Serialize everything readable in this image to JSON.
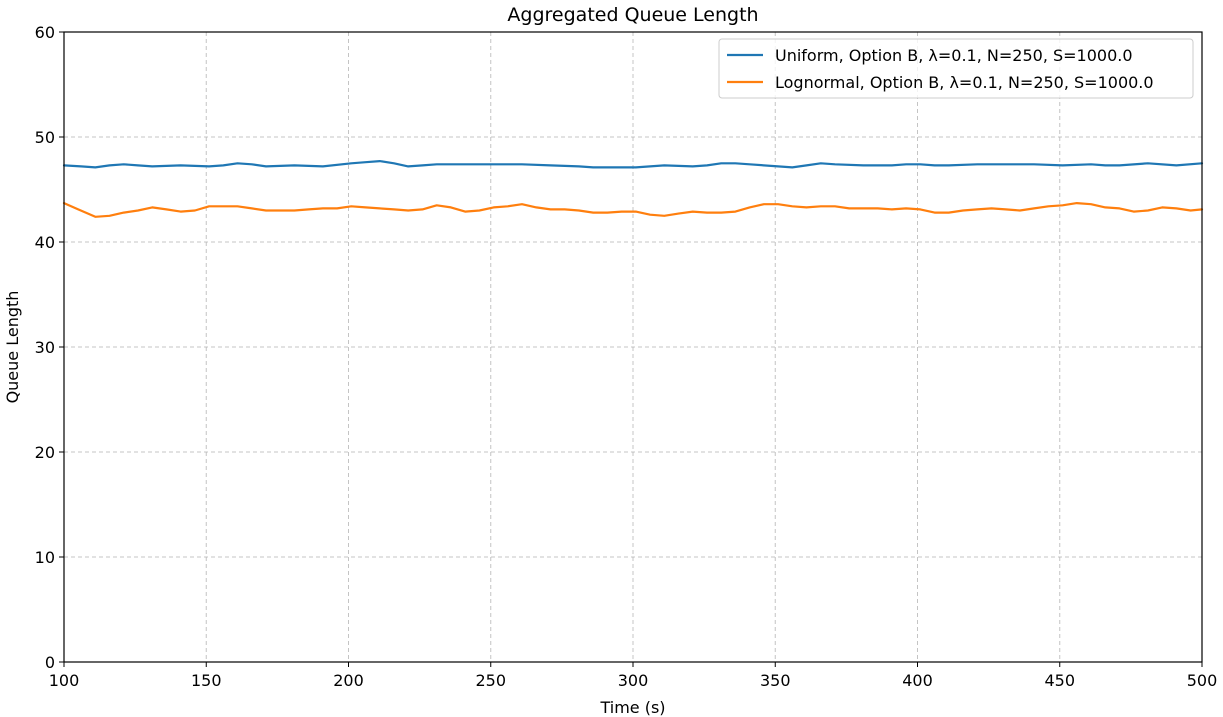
{
  "chart_data": {
    "type": "line",
    "title": "Aggregated Queue Length",
    "xlabel": "Time (s)",
    "ylabel": "Queue Length",
    "xlim": [
      100,
      500
    ],
    "ylim": [
      0,
      60
    ],
    "xticks": [
      100,
      150,
      200,
      250,
      300,
      350,
      400,
      450,
      500
    ],
    "yticks": [
      0,
      10,
      20,
      30,
      40,
      50,
      60
    ],
    "grid": true,
    "legend_position": "top-right",
    "series": [
      {
        "name": "Uniform, Option B, λ=0.1, N=250, S=1000.0",
        "color": "#1f77b4",
        "x": [
          100,
          106,
          111,
          116,
          121,
          126,
          131,
          141,
          151,
          156,
          161,
          166,
          171,
          181,
          191,
          201,
          206,
          211,
          216,
          221,
          226,
          231,
          241,
          251,
          261,
          271,
          281,
          286,
          291,
          296,
          301,
          311,
          321,
          326,
          331,
          336,
          341,
          351,
          356,
          361,
          366,
          371,
          381,
          391,
          396,
          401,
          406,
          411,
          421,
          431,
          441,
          451,
          461,
          466,
          471,
          481,
          491,
          500
        ],
        "y": [
          47.3,
          47.2,
          47.1,
          47.3,
          47.4,
          47.3,
          47.2,
          47.3,
          47.2,
          47.3,
          47.5,
          47.4,
          47.2,
          47.3,
          47.2,
          47.5,
          47.6,
          47.7,
          47.5,
          47.2,
          47.3,
          47.4,
          47.4,
          47.4,
          47.4,
          47.3,
          47.2,
          47.1,
          47.1,
          47.1,
          47.1,
          47.3,
          47.2,
          47.3,
          47.5,
          47.5,
          47.4,
          47.2,
          47.1,
          47.3,
          47.5,
          47.4,
          47.3,
          47.3,
          47.4,
          47.4,
          47.3,
          47.3,
          47.4,
          47.4,
          47.4,
          47.3,
          47.4,
          47.3,
          47.3,
          47.5,
          47.3,
          47.5
        ]
      },
      {
        "name": "Lognormal, Option B, λ=0.1, N=250, S=1000.0",
        "color": "#ff7f0e",
        "x": [
          100,
          105,
          111,
          116,
          121,
          126,
          131,
          136,
          141,
          146,
          151,
          156,
          161,
          166,
          171,
          176,
          181,
          186,
          191,
          196,
          201,
          206,
          211,
          216,
          221,
          226,
          231,
          236,
          241,
          246,
          251,
          256,
          261,
          266,
          271,
          276,
          281,
          286,
          291,
          296,
          301,
          306,
          311,
          316,
          321,
          326,
          331,
          336,
          341,
          346,
          351,
          356,
          361,
          366,
          371,
          376,
          381,
          386,
          391,
          396,
          401,
          406,
          411,
          416,
          421,
          426,
          431,
          436,
          441,
          446,
          451,
          456,
          461,
          466,
          471,
          476,
          481,
          486,
          491,
          496,
          500
        ],
        "y": [
          43.7,
          43.1,
          42.4,
          42.5,
          42.8,
          43.0,
          43.3,
          43.1,
          42.9,
          43.0,
          43.4,
          43.4,
          43.4,
          43.2,
          43.0,
          43.0,
          43.0,
          43.1,
          43.2,
          43.2,
          43.4,
          43.3,
          43.2,
          43.1,
          43.0,
          43.1,
          43.5,
          43.3,
          42.9,
          43.0,
          43.3,
          43.4,
          43.6,
          43.3,
          43.1,
          43.1,
          43.0,
          42.8,
          42.8,
          42.9,
          42.9,
          42.6,
          42.5,
          42.7,
          42.9,
          42.8,
          42.8,
          42.9,
          43.3,
          43.6,
          43.6,
          43.4,
          43.3,
          43.4,
          43.4,
          43.2,
          43.2,
          43.2,
          43.1,
          43.2,
          43.1,
          42.8,
          42.8,
          43.0,
          43.1,
          43.2,
          43.1,
          43.0,
          43.2,
          43.4,
          43.5,
          43.7,
          43.6,
          43.3,
          43.2,
          42.9,
          43.0,
          43.3,
          43.2,
          43.0,
          43.1
        ]
      }
    ]
  }
}
